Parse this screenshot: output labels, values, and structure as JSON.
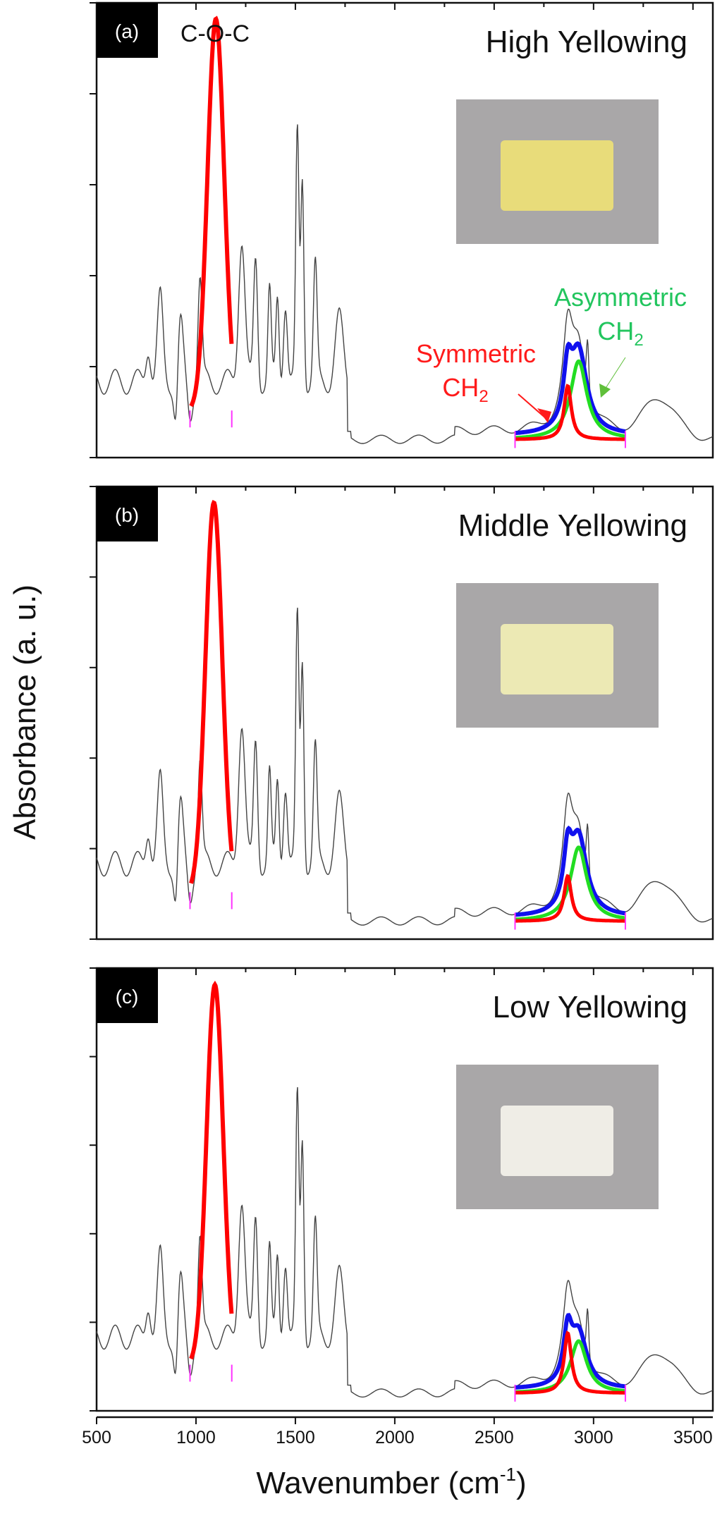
{
  "chart_data": {
    "type": "line",
    "title": "",
    "xlabel": "Wavenumber (cm-1)",
    "xlabel_parts": {
      "base": "Wavenumber (cm",
      "sup": "-1",
      "tail": ")"
    },
    "ylabel": "Absorbance (a. u.)",
    "xlim": [
      500,
      3600
    ],
    "x_ticks": [
      500,
      1000,
      1500,
      2000,
      2500,
      3000,
      3500
    ],
    "x_tick_labels": [
      "500",
      "1000",
      "1500",
      "2000",
      "2500",
      "3000",
      "3500"
    ],
    "y_ticks_labeled": false,
    "series_colors": {
      "spectrum": "#444444",
      "coc_fit": "#ff0000",
      "sym_ch2": "#ff0000",
      "asym_ch2": "#22dd22",
      "ch2_envelope": "#1010ee",
      "baseline_markers": "#ff33ff"
    },
    "panels": [
      {
        "tag": "(a)",
        "label": "High Yellowing",
        "annotation_coc": "C-O-C",
        "annotation_sym": {
          "line1": "Symmetric",
          "line2": "CH",
          "sub": "2"
        },
        "annotation_asym": {
          "line1": "Asymmetric",
          "line2": "CH",
          "sub": "2"
        },
        "sample_color": "#e8dc7a",
        "peaks": {
          "coc_center": 1100,
          "coc_height": 0.95,
          "sym_ch2_center": 2870,
          "sym_ch2_height": 0.13,
          "asym_ch2_center": 2925,
          "asym_ch2_height": 0.19,
          "envelope_height": 0.23,
          "peak_1510": 0.6,
          "peak_1535": 0.5
        }
      },
      {
        "tag": "(b)",
        "label": "Middle Yellowing",
        "annotation_coc": "",
        "sample_color": "#ece9b4",
        "peaks": {
          "coc_center": 1090,
          "coc_height": 0.95,
          "sym_ch2_center": 2870,
          "sym_ch2_height": 0.11,
          "asym_ch2_center": 2925,
          "asym_ch2_height": 0.18,
          "envelope_height": 0.23,
          "peak_1510": 0.6,
          "peak_1535": 0.5
        }
      },
      {
        "tag": "(c)",
        "label": "Low Yellowing",
        "annotation_coc": "",
        "sample_color": "#efede6",
        "peaks": {
          "coc_center": 1095,
          "coc_height": 0.95,
          "sym_ch2_center": 2870,
          "sym_ch2_height": 0.15,
          "asym_ch2_center": 2925,
          "asym_ch2_height": 0.13,
          "envelope_height": 0.22,
          "peak_1510": 0.6,
          "peak_1535": 0.5
        }
      }
    ]
  }
}
